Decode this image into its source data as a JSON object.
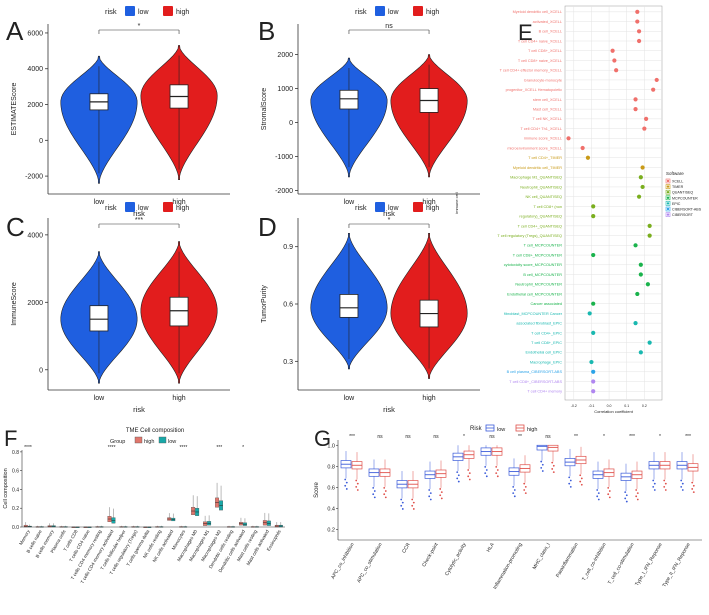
{
  "colors": {
    "low": "#1f5fe0",
    "high": "#e21d1d",
    "box": "#ffffff"
  },
  "violin_panels": [
    {
      "letter": "A",
      "ylabel": "ESTIMATEScore",
      "xlabel": "risk",
      "legend_title": "risk",
      "legend": [
        "low",
        "high"
      ],
      "sig": "*",
      "ylim": [
        -3000,
        6500
      ],
      "ticks": [
        -2000,
        0,
        2000,
        4000,
        6000
      ],
      "categories": [
        "low",
        "high"
      ],
      "series": [
        {
          "name": "low",
          "min": -2400,
          "q1": 1700,
          "median": 2150,
          "q3": 2600,
          "max": 4700,
          "mode": 2150
        },
        {
          "name": "high",
          "min": -2200,
          "q1": 1800,
          "median": 2450,
          "q3": 3100,
          "max": 5300,
          "mode": 2500
        }
      ]
    },
    {
      "letter": "B",
      "ylabel": "StromalScore",
      "xlabel": "risk",
      "legend_title": "risk",
      "legend": [
        "low",
        "high"
      ],
      "sig": "ns",
      "ylim": [
        -2100,
        2900
      ],
      "ticks": [
        -2000,
        -1000,
        0,
        1000,
        2000
      ],
      "categories": [
        "low",
        "high"
      ],
      "series": [
        {
          "name": "low",
          "min": -1600,
          "q1": 400,
          "median": 700,
          "q3": 950,
          "max": 1900,
          "mode": 650
        },
        {
          "name": "high",
          "min": -1600,
          "q1": 300,
          "median": 650,
          "q3": 1000,
          "max": 2000,
          "mode": 650
        }
      ]
    },
    {
      "letter": "C",
      "ylabel": "ImmuneScore",
      "xlabel": "risk",
      "legend_title": "risk",
      "legend": [
        "low",
        "high"
      ],
      "sig": "***",
      "ylim": [
        -600,
        4500
      ],
      "ticks": [
        0,
        2000,
        4000
      ],
      "categories": [
        "low",
        "high"
      ],
      "series": [
        {
          "name": "low",
          "min": -400,
          "q1": 1150,
          "median": 1500,
          "q3": 1900,
          "max": 3500,
          "mode": 1500
        },
        {
          "name": "high",
          "min": -400,
          "q1": 1300,
          "median": 1750,
          "q3": 2150,
          "max": 3800,
          "mode": 1750
        }
      ]
    },
    {
      "letter": "D",
      "ylabel": "TumorPurity",
      "xlabel": "risk",
      "legend_title": "risk",
      "legend": [
        "low",
        "high"
      ],
      "sig": "*",
      "ylim": [
        0.15,
        1.05
      ],
      "ticks": [
        0.3,
        0.6,
        0.9
      ],
      "categories": [
        "low",
        "high"
      ],
      "series": [
        {
          "name": "low",
          "min": 0.26,
          "q1": 0.53,
          "median": 0.58,
          "q3": 0.65,
          "max": 0.97,
          "mode": 0.58
        },
        {
          "name": "high",
          "min": 0.21,
          "q1": 0.48,
          "median": 0.55,
          "q3": 0.62,
          "max": 0.97,
          "mode": 0.55
        }
      ]
    }
  ],
  "panelE": {
    "letter": "E",
    "xlabel": "Correlation coefficient",
    "ylabel": "immune cell",
    "legend_title": "Software",
    "software": [
      {
        "name": "XCELL",
        "color": "#f0706b"
      },
      {
        "name": "TIMER",
        "color": "#c99a17"
      },
      {
        "name": "QUANTISEQ",
        "color": "#7aae1e"
      },
      {
        "name": "MCPCOUNTER",
        "color": "#1ab34c"
      },
      {
        "name": "EPIC",
        "color": "#19b8b0"
      },
      {
        "name": "CIBERSORT-ABS",
        "color": "#2ba3e8"
      },
      {
        "name": "CIBERSORT",
        "color": "#b086f0"
      }
    ],
    "xticks": [
      "-0.2",
      "-0.1",
      "0.0",
      "0.1",
      "0.2"
    ],
    "cells": [
      {
        "label": "Myeloid dendritic cell_XCELL",
        "sw": 0,
        "r": 0.16
      },
      {
        "label": "activated_XCELL",
        "sw": 0,
        "r": 0.16
      },
      {
        "label": "B cell_XCELL",
        "sw": 0,
        "r": 0.17
      },
      {
        "label": "T cell CD4+ naive_XCELL",
        "sw": 0,
        "r": 0.17
      },
      {
        "label": "T cell CD8+_XCELL",
        "sw": 0,
        "r": 0.02
      },
      {
        "label": "T cell CD8+ naive_XCELL",
        "sw": 0,
        "r": 0.03
      },
      {
        "label": "T cell CD4+ effector memory_XCELL",
        "sw": 0,
        "r": 0.04
      },
      {
        "label": "Granulocyte-monocyte",
        "sw": 0,
        "r": 0.27
      },
      {
        "label": "progenitor_XCELL Hematopoietic",
        "sw": 0,
        "r": 0.25
      },
      {
        "label": "stem cell_XCELL",
        "sw": 0,
        "r": 0.15
      },
      {
        "label": "Mast cell_XCELL",
        "sw": 0,
        "r": 0.15
      },
      {
        "label": "T cell NK_XCELL",
        "sw": 0,
        "r": 0.21
      },
      {
        "label": "T cell CD4+ Th1_XCELL",
        "sw": 0,
        "r": 0.2
      },
      {
        "label": "immune score_XCELL",
        "sw": 0,
        "r": -0.23
      },
      {
        "label": "microenvironment score_XCELL",
        "sw": 0,
        "r": -0.15
      },
      {
        "label": "T cell CD4+_TIMER",
        "sw": 1,
        "r": -0.12
      },
      {
        "label": "Myeloid dendritic cell_TIMER",
        "sw": 1,
        "r": 0.19
      },
      {
        "label": "Macrophage M1_QUANTISEQ",
        "sw": 2,
        "r": 0.18
      },
      {
        "label": "Neutrophil_QUANTISEQ",
        "sw": 2,
        "r": 0.19
      },
      {
        "label": "NK cell_QUANTISEQ",
        "sw": 2,
        "r": 0.17
      },
      {
        "label": "T cell CD8+ (non",
        "sw": 2,
        "r": -0.09
      },
      {
        "label": "regulatory)_QUANTISEQ",
        "sw": 2,
        "r": -0.09
      },
      {
        "label": "T cell CD4+_QUANTISEQ",
        "sw": 2,
        "r": 0.23
      },
      {
        "label": "T cell regulatory (Tregs)_QUANTISEQ",
        "sw": 2,
        "r": 0.23
      },
      {
        "label": "T cell_MCPCOUNTER",
        "sw": 3,
        "r": 0.15
      },
      {
        "label": "T cell CD8+_MCPCOUNTER",
        "sw": 3,
        "r": -0.09
      },
      {
        "label": "cytotoxicity score_MCPCOUNTER",
        "sw": 3,
        "r": 0.18
      },
      {
        "label": "B cell_MCPCOUNTER",
        "sw": 3,
        "r": 0.18
      },
      {
        "label": "Neutrophil_MCPCOUNTER",
        "sw": 3,
        "r": 0.22
      },
      {
        "label": "Endothelial cell_MCPCOUNTER",
        "sw": 3,
        "r": 0.16
      },
      {
        "label": "Cancer associated",
        "sw": 3,
        "r": -0.09
      },
      {
        "label": "fibroblast_MCPCOUNTER Cancer",
        "sw": 4,
        "r": -0.11
      },
      {
        "label": "associated fibroblast_EPIC",
        "sw": 4,
        "r": 0.15
      },
      {
        "label": "T cell CD4+_EPIC",
        "sw": 4,
        "r": -0.09
      },
      {
        "label": "T cell CD8+_EPIC",
        "sw": 4,
        "r": 0.23
      },
      {
        "label": "Endothelial cell_EPIC",
        "sw": 4,
        "r": 0.18
      },
      {
        "label": "Macrophage_EPIC",
        "sw": 4,
        "r": -0.1
      },
      {
        "label": "B cell plasma_CIBERSORT-ABS",
        "sw": 5,
        "r": -0.09
      },
      {
        "label": "T cell CD8+_CIBERSORT-ABS",
        "sw": 6,
        "r": -0.09
      },
      {
        "label": "T cell CD4+ memory",
        "sw": 6,
        "r": -0.09
      }
    ]
  },
  "panelF": {
    "letter": "F",
    "title": "TME Cell composition",
    "legend_title": "Group",
    "legend": [
      "high",
      "low"
    ],
    "colors": {
      "high": "#e0766c",
      "low": "#18a8a8"
    },
    "ylabel": "Cell composition",
    "yticks": [
      "0.0",
      "0.2",
      "0.4",
      "0.6",
      "0.8"
    ],
    "ylim": [
      0,
      0.82
    ],
    "categories": [
      "Memory",
      "B cells naive",
      "B cells memory",
      "Plasma cells",
      "T cells CD8",
      "T cells CD4 naive",
      "T cells CD4 memory resting",
      "T cells CD4 memory activated",
      "T cells follicular helper",
      "T cells regulatory (Tregs)",
      "T cells gamma delta",
      "NK cells resting",
      "NK cells activated",
      "Monocytes",
      "Macrophages M0",
      "Macrophages M1",
      "Macrophages M2",
      "Dendritic cells resting",
      "Dendritic cells activated",
      "Mast cells resting",
      "Mast cells activated",
      "Eosinophils"
    ],
    "sig": [
      "****",
      "",
      "",
      "",
      "",
      "",
      "",
      "****",
      "",
      "",
      "",
      "",
      "",
      "****",
      "",
      "",
      "***",
      "",
      "*",
      "",
      "",
      ""
    ],
    "series": [
      {
        "name": "high",
        "median": [
          0.008,
          0.0,
          0.005,
          0.0,
          0.0,
          0.0,
          0.0,
          0.085,
          0.0,
          0.0,
          0.0,
          0.0,
          0.085,
          0.0,
          0.17,
          0.035,
          0.26,
          0.0,
          0.035,
          0.0,
          0.045,
          0.01
        ],
        "q3": [
          0.02,
          0.005,
          0.015,
          0.005,
          0.0,
          0.0,
          0.005,
          0.115,
          0.005,
          0.005,
          0.0,
          0.005,
          0.1,
          0.005,
          0.21,
          0.055,
          0.31,
          0.005,
          0.05,
          0.005,
          0.07,
          0.02
        ]
      },
      {
        "name": "low",
        "median": [
          0.003,
          0.0,
          0.005,
          0.0,
          0.0,
          0.0,
          0.0,
          0.07,
          0.0,
          0.0,
          0.0,
          0.0,
          0.08,
          0.0,
          0.16,
          0.04,
          0.23,
          0.0,
          0.03,
          0.0,
          0.04,
          0.01
        ],
        "q3": [
          0.01,
          0.005,
          0.015,
          0.005,
          0.0,
          0.0,
          0.005,
          0.1,
          0.005,
          0.005,
          0.0,
          0.005,
          0.095,
          0.005,
          0.2,
          0.06,
          0.28,
          0.005,
          0.045,
          0.005,
          0.065,
          0.02
        ]
      }
    ]
  },
  "panelG": {
    "letter": "G",
    "legend_title": "Risk",
    "legend": [
      "low",
      "high"
    ],
    "colors": {
      "low": "#3a5bd9",
      "high": "#e0504a"
    },
    "ylabel": "Score",
    "yticks": [
      "0.2",
      "0.4",
      "0.6",
      "0.8",
      "1.0"
    ],
    "ylim": [
      0.1,
      1.05
    ],
    "categories": [
      "APC_co_inhibition",
      "APC_co_stimulation",
      "CCR",
      "Check-point",
      "Cytolytic_activity",
      "HLA",
      "Inflammation-promoting",
      "MHC_class_I",
      "Parainflammation",
      "T_cell_co-inhibition",
      "T_cell_co-stimulation",
      "Type_I_IFN_Reponse",
      "Type_II_IFN_Reponse"
    ],
    "sig": [
      "***",
      "ns",
      "ns",
      "ns",
      "*",
      "ns",
      "**",
      "ns",
      "**",
      "*",
      "***",
      "*",
      "***"
    ],
    "series": [
      {
        "name": "low",
        "median": [
          0.82,
          0.74,
          0.63,
          0.72,
          0.89,
          0.94,
          0.75,
          0.99,
          0.84,
          0.72,
          0.7,
          0.81,
          0.81
        ]
      },
      {
        "name": "high",
        "median": [
          0.81,
          0.74,
          0.63,
          0.73,
          0.91,
          0.94,
          0.78,
          0.98,
          0.86,
          0.74,
          0.72,
          0.81,
          0.79
        ]
      }
    ]
  }
}
